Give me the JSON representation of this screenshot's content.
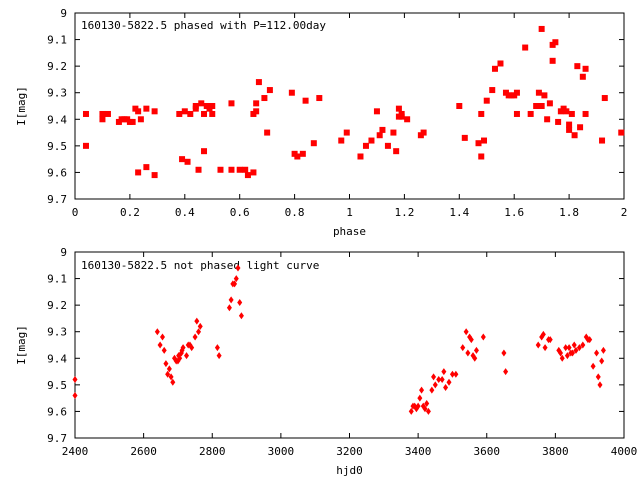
{
  "chart_data": [
    {
      "type": "scatter",
      "title": "160130-5822.5 phased with P=112.00day",
      "xlabel": "phase",
      "ylabel": "I[mag]",
      "xlim": [
        0,
        2
      ],
      "ylim": [
        9.7,
        9
      ],
      "y_inverted": true,
      "xticks": [
        "0",
        "0.2",
        "0.4",
        "0.6",
        "0.8",
        "1",
        "1.2",
        "1.4",
        "1.6",
        "1.8",
        "2"
      ],
      "yticks": [
        "9",
        "9.1",
        "9.2",
        "9.3",
        "9.4",
        "9.5",
        "9.6",
        "9.7"
      ],
      "marker": "filled-square",
      "color": "#ff0000",
      "series": [
        {
          "x": [
            0.04,
            0.04,
            0.1,
            0.1,
            0.12,
            0.16,
            0.17,
            0.18,
            0.19,
            0.2,
            0.21,
            0.22,
            0.23,
            0.23,
            0.24,
            0.26,
            0.26,
            0.29,
            0.29,
            0.38,
            0.39,
            0.4,
            0.41,
            0.42,
            0.44,
            0.44,
            0.45,
            0.46,
            0.47,
            0.47,
            0.48,
            0.49,
            0.5,
            0.5,
            0.53,
            0.57,
            0.57,
            0.6,
            0.62,
            0.63,
            0.65,
            0.65,
            0.66,
            0.66,
            0.67,
            0.69,
            0.7,
            0.71,
            0.79,
            0.8,
            0.81,
            0.83,
            0.84,
            0.87,
            0.89,
            0.97,
            0.99,
            1.04,
            1.06,
            1.08,
            1.1,
            1.11,
            1.12,
            1.14,
            1.16,
            1.17,
            1.18,
            1.18,
            1.19,
            1.19,
            1.21,
            1.26,
            1.27,
            1.4,
            1.42,
            1.47,
            1.48,
            1.48,
            1.49,
            1.5,
            1.52,
            1.53,
            1.55,
            1.57,
            1.58,
            1.59,
            1.6,
            1.61,
            1.61,
            1.64,
            1.66,
            1.68,
            1.69,
            1.7,
            1.7,
            1.71,
            1.72,
            1.73,
            1.74,
            1.74,
            1.75,
            1.76,
            1.77,
            1.78,
            1.79,
            1.8,
            1.8,
            1.81,
            1.82,
            1.83,
            1.84,
            1.85,
            1.86,
            1.86,
            1.92,
            1.93,
            1.99
          ],
          "y": [
            9.5,
            9.38,
            9.4,
            9.38,
            9.38,
            9.41,
            9.4,
            9.4,
            9.4,
            9.41,
            9.41,
            9.36,
            9.37,
            9.6,
            9.4,
            9.36,
            9.58,
            9.37,
            9.61,
            9.38,
            9.55,
            9.37,
            9.56,
            9.38,
            9.36,
            9.35,
            9.59,
            9.34,
            9.38,
            9.52,
            9.35,
            9.36,
            9.35,
            9.38,
            9.59,
            9.34,
            9.59,
            9.59,
            9.59,
            9.61,
            9.6,
            9.38,
            9.34,
            9.37,
            9.26,
            9.32,
            9.45,
            9.29,
            9.3,
            9.53,
            9.54,
            9.53,
            9.33,
            9.49,
            9.32,
            9.48,
            9.45,
            9.54,
            9.5,
            9.48,
            9.37,
            9.46,
            9.44,
            9.5,
            9.45,
            9.52,
            9.39,
            9.36,
            9.38,
            9.39,
            9.4,
            9.46,
            9.45,
            9.35,
            9.47,
            9.49,
            9.54,
            9.38,
            9.48,
            9.33,
            9.29,
            9.21,
            9.19,
            9.3,
            9.31,
            9.31,
            9.31,
            9.3,
            9.38,
            9.13,
            9.38,
            9.35,
            9.3,
            9.06,
            9.35,
            9.31,
            9.4,
            9.34,
            9.12,
            9.18,
            9.11,
            9.41,
            9.37,
            9.36,
            9.37,
            9.44,
            9.42,
            9.38,
            9.46,
            9.2,
            9.43,
            9.24,
            9.38,
            9.21,
            9.48,
            9.32,
            9.45
          ]
        }
      ]
    },
    {
      "type": "scatter",
      "title": "160130-5822.5 not phased light curve",
      "xlabel": "hjd0",
      "ylabel": "I[mag]",
      "xlim": [
        2400,
        4000
      ],
      "ylim": [
        9.7,
        9
      ],
      "y_inverted": true,
      "xticks": [
        "2400",
        "2600",
        "2800",
        "3000",
        "3200",
        "3400",
        "3600",
        "3800",
        "4000"
      ],
      "yticks": [
        "9",
        "9.1",
        "9.2",
        "9.3",
        "9.4",
        "9.5",
        "9.6",
        "9.7"
      ],
      "marker": "filled-diamond",
      "color": "#ff0000",
      "series": [
        {
          "x": [
            2400,
            2400,
            2640,
            2648,
            2655,
            2660,
            2665,
            2670,
            2675,
            2680,
            2685,
            2690,
            2695,
            2700,
            2702,
            2705,
            2710,
            2712,
            2715,
            2725,
            2730,
            2735,
            2740,
            2750,
            2755,
            2760,
            2765,
            2815,
            2820,
            2850,
            2855,
            2860,
            2865,
            2870,
            2875,
            2880,
            2885,
            3380,
            3385,
            3390,
            3395,
            3400,
            3405,
            3410,
            3415,
            3420,
            3425,
            3430,
            3440,
            3445,
            3450,
            3460,
            3470,
            3475,
            3480,
            3490,
            3500,
            3510,
            3530,
            3540,
            3545,
            3550,
            3555,
            3560,
            3565,
            3570,
            3590,
            3650,
            3655,
            3750,
            3760,
            3765,
            3770,
            3780,
            3785,
            3810,
            3815,
            3820,
            3830,
            3835,
            3840,
            3845,
            3850,
            3855,
            3860,
            3870,
            3880,
            3890,
            3895,
            3900,
            3910,
            3920,
            3925,
            3930,
            3935,
            3940
          ],
          "y": [
            9.48,
            9.54,
            9.3,
            9.35,
            9.32,
            9.37,
            9.42,
            9.46,
            9.44,
            9.47,
            9.49,
            9.4,
            9.41,
            9.41,
            9.39,
            9.4,
            9.38,
            9.37,
            9.36,
            9.39,
            9.35,
            9.35,
            9.36,
            9.32,
            9.26,
            9.3,
            9.28,
            9.36,
            9.39,
            9.21,
            9.18,
            9.12,
            9.12,
            9.1,
            9.06,
            9.19,
            9.24,
            9.6,
            9.58,
            9.58,
            9.59,
            9.58,
            9.55,
            9.52,
            9.58,
            9.59,
            9.57,
            9.6,
            9.52,
            9.47,
            9.5,
            9.48,
            9.48,
            9.45,
            9.51,
            9.49,
            9.46,
            9.46,
            9.36,
            9.3,
            9.38,
            9.32,
            9.33,
            9.39,
            9.4,
            9.37,
            9.32,
            9.38,
            9.45,
            9.35,
            9.32,
            9.31,
            9.36,
            9.33,
            9.33,
            9.37,
            9.38,
            9.4,
            9.36,
            9.39,
            9.36,
            9.38,
            9.38,
            9.35,
            9.37,
            9.36,
            9.35,
            9.32,
            9.33,
            9.33,
            9.43,
            9.38,
            9.47,
            9.5,
            9.41,
            9.37
          ]
        }
      ]
    }
  ]
}
